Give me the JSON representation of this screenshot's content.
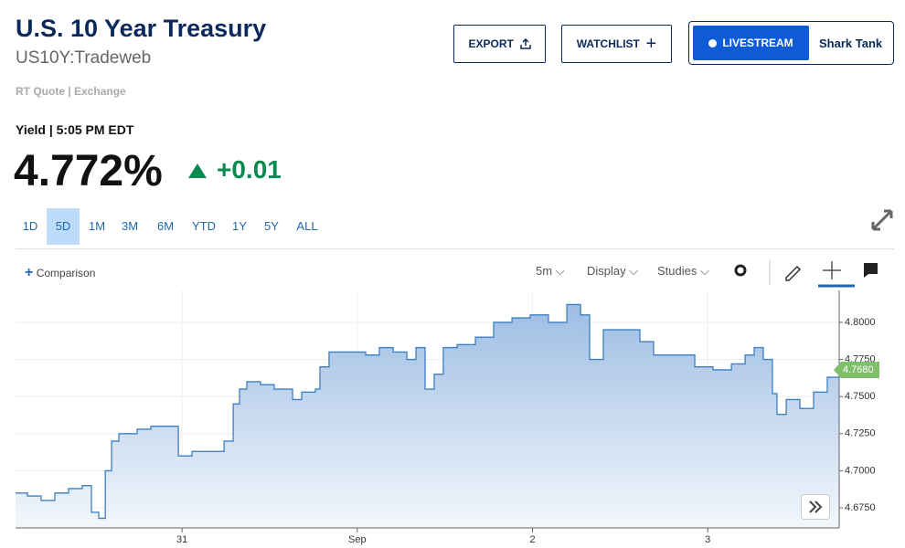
{
  "header": {
    "title": "U.S. 10 Year Treasury",
    "symbol": "US10Y:Tradeweb",
    "quote_type": "RT Quote | Exchange"
  },
  "buttons": {
    "export": "EXPORT",
    "watchlist": "WATCHLIST",
    "livestream": "LIVESTREAM",
    "show": "Shark Tank"
  },
  "quote": {
    "label": "Yield | 5:05 PM EDT",
    "price": "4.772%",
    "change": "+0.01"
  },
  "ranges": [
    "1D",
    "5D",
    "1M",
    "3M",
    "6M",
    "YTD",
    "1Y",
    "5Y",
    "ALL"
  ],
  "selected_range": 1,
  "toolbar": {
    "comparison": "Comparison",
    "interval": "5m",
    "display": "Display",
    "studies": "Studies"
  },
  "chart": {
    "type": "line",
    "color": "#3d7fc1",
    "x": [
      0.05,
      0.118,
      0.196,
      0.274,
      0.353,
      0.431,
      0.483,
      0.525,
      0.562,
      0.598,
      0.64,
      0.744,
      0.822,
      0.963,
      0.979,
      1.057,
      1.187,
      1.24,
      1.292,
      1.328,
      1.37,
      1.448,
      1.526,
      1.631,
      1.683,
      1.761,
      1.787,
      1.839,
      1.944,
      2.048,
      2.126,
      2.205,
      2.283,
      2.335,
      2.387,
      2.439,
      2.491,
      2.57,
      2.674,
      2.778,
      2.883,
      2.987,
      3.091,
      3.196,
      3.274,
      3.326,
      3.404,
      3.509,
      3.613,
      3.691,
      3.822,
      3.926,
      4.03,
      4.135,
      4.213,
      4.265,
      4.317,
      4.369,
      4.395,
      4.448,
      4.526,
      4.604,
      4.682,
      4.75
    ],
    "values": [
      4.685,
      4.683,
      4.68,
      4.685,
      4.688,
      4.69,
      4.672,
      4.668,
      4.7,
      4.72,
      4.725,
      4.728,
      4.73,
      4.73,
      4.71,
      4.713,
      4.713,
      4.72,
      4.745,
      4.755,
      4.76,
      4.758,
      4.755,
      4.748,
      4.753,
      4.755,
      4.77,
      4.78,
      4.78,
      4.778,
      4.783,
      4.78,
      4.775,
      4.783,
      4.755,
      4.765,
      4.783,
      4.785,
      4.79,
      4.8,
      4.803,
      4.805,
      4.8,
      4.812,
      4.805,
      4.775,
      4.795,
      4.795,
      4.787,
      4.778,
      4.778,
      4.77,
      4.768,
      4.772,
      4.778,
      4.783,
      4.775,
      4.752,
      4.738,
      4.748,
      4.742,
      4.753,
      4.763,
      4.768
    ],
    "xlim": [
      0.05,
      4.75
    ],
    "xticks": [
      {
        "value": 1,
        "label": "31"
      },
      {
        "value": 2,
        "label": "Sep"
      },
      {
        "value": 3,
        "label": "2"
      },
      {
        "value": 4,
        "label": "3"
      }
    ],
    "ylim": [
      4.6615,
      4.8215
    ],
    "yticks": [
      {
        "value": 4.675,
        "label": "4.6750"
      },
      {
        "value": 4.7,
        "label": "4.7000"
      },
      {
        "value": 4.725,
        "label": "4.7250"
      },
      {
        "value": 4.75,
        "label": "4.7500"
      },
      {
        "value": 4.775,
        "label": "4.7750"
      },
      {
        "value": 4.8,
        "label": "4.8000"
      }
    ],
    "last": {
      "value": 4.768,
      "label": "4.7680"
    },
    "grid": true
  }
}
